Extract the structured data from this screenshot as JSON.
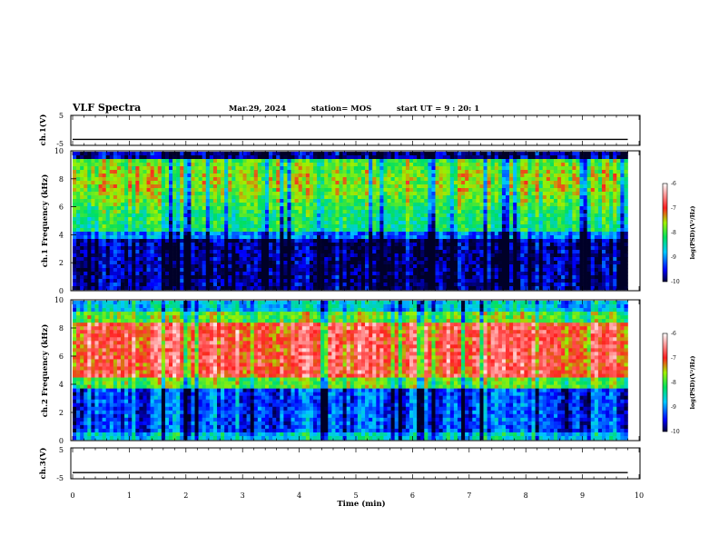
{
  "header": {
    "title": "VLF Spectra",
    "date": "Mar.29, 2024",
    "station": "station= MOS",
    "start": "start UT =   9 : 20: 1"
  },
  "chart_data": [
    {
      "type": "line",
      "name": "ch1-voltage",
      "ylabel": "ch.1(V)",
      "ylim": [
        -5,
        5
      ],
      "ytick_labels": [
        "5",
        "-5"
      ],
      "xlim": [
        0,
        10
      ],
      "level": -3
    },
    {
      "type": "heatmap",
      "name": "ch1-spectrogram",
      "ylabel": "ch.1 Frequency (kHz)",
      "ylim": [
        0,
        10
      ],
      "ytick_labels": [
        "0",
        "2",
        "4",
        "6",
        "8",
        "10"
      ],
      "xlim": [
        0,
        10
      ],
      "data_end_min": 9.8,
      "colorbar": {
        "label": "log(PSD)(V²/Hz)",
        "range": [
          -10,
          -6
        ],
        "tick_labels": [
          "-6",
          "-7",
          "-8",
          "-9",
          "-10"
        ]
      }
    },
    {
      "type": "heatmap",
      "name": "ch2-spectrogram",
      "ylabel": "ch.2 Frequency (kHz)",
      "ylim": [
        0,
        10
      ],
      "ytick_labels": [
        "0",
        "2",
        "4",
        "6",
        "8",
        "10"
      ],
      "xlim": [
        0,
        10
      ],
      "data_end_min": 9.8,
      "colorbar": {
        "label": "log(PSD)(V²/Hz)",
        "range": [
          -10,
          -6
        ],
        "tick_labels": [
          "-6",
          "-7",
          "-8",
          "-9",
          "-10"
        ]
      }
    },
    {
      "type": "line",
      "name": "ch3-voltage",
      "ylabel": "ch.3(V)",
      "ylim": [
        -5,
        5
      ],
      "ytick_labels": [
        "5",
        "-5"
      ],
      "xlim": [
        0,
        10
      ],
      "level": -3
    }
  ],
  "xaxis": {
    "label": "Time (min)",
    "ticks": [
      "0",
      "1",
      "2",
      "3",
      "4",
      "5",
      "6",
      "7",
      "8",
      "9",
      "10"
    ]
  }
}
